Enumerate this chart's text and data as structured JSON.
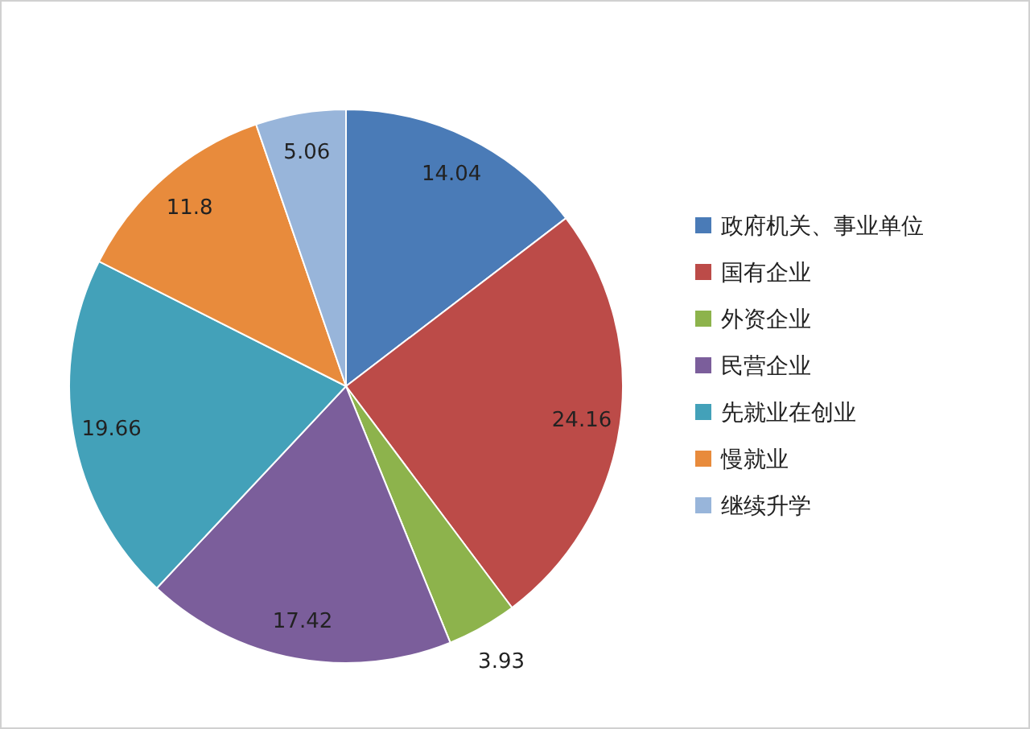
{
  "chart_data": {
    "type": "pie",
    "categories": [
      "政府机关、事业单位",
      "国有企业",
      "外资企业",
      "民营企业",
      "先就业在创业",
      "慢就业",
      "继续升学"
    ],
    "values": [
      14.04,
      24.16,
      3.93,
      17.42,
      19.66,
      11.8,
      5.06
    ],
    "colors": [
      "#4a7bb7",
      "#bc4b48",
      "#8db34c",
      "#7b5e9b",
      "#43a1b9",
      "#e88b3c",
      "#98b5da"
    ],
    "data_labels": true,
    "legend": "right"
  }
}
